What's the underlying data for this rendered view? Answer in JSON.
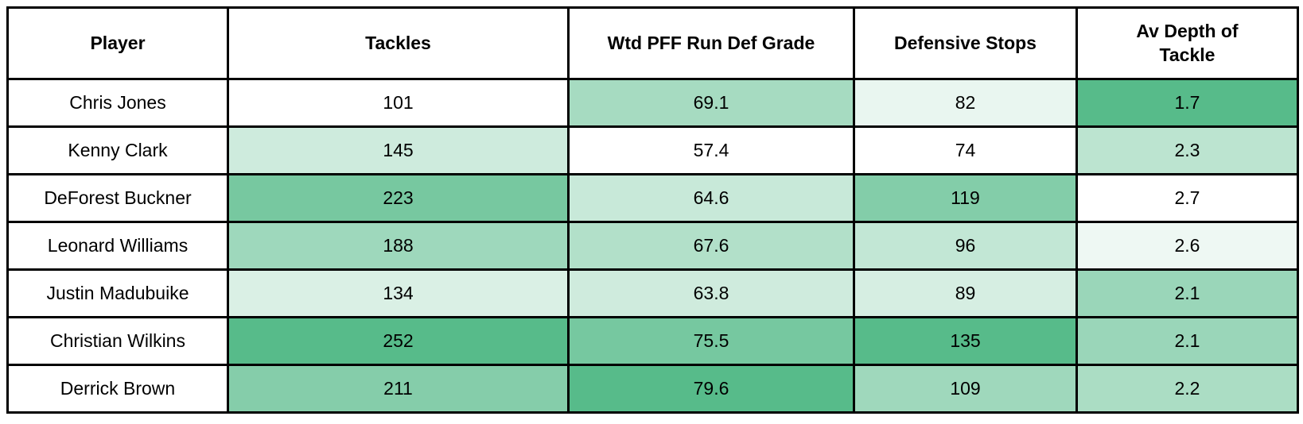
{
  "table": {
    "columns": [
      "Player",
      "Tackles",
      "Wtd PFF Run Def Grade",
      "Defensive Stops",
      "Av Depth of Tackle"
    ],
    "rows": [
      {
        "player": "Chris Jones",
        "cells": [
          {
            "value": "101",
            "bg": "#FFFFFF"
          },
          {
            "value": "69.1",
            "bg": "#A6DBC1"
          },
          {
            "value": "82",
            "bg": "#E9F6F0"
          },
          {
            "value": "1.7",
            "bg": "#57BB8A"
          }
        ]
      },
      {
        "player": "Kenny Clark",
        "cells": [
          {
            "value": "145",
            "bg": "#CEEBDD"
          },
          {
            "value": "57.4",
            "bg": "#FFFFFF"
          },
          {
            "value": "74",
            "bg": "#FFFFFF"
          },
          {
            "value": "2.3",
            "bg": "#BCE4D0"
          }
        ]
      },
      {
        "player": "DeForest Buckner",
        "cells": [
          {
            "value": "223",
            "bg": "#77C8A0"
          },
          {
            "value": "64.6",
            "bg": "#C8E9D9"
          },
          {
            "value": "119",
            "bg": "#83CDA9"
          },
          {
            "value": "2.7",
            "bg": "#FFFFFF"
          }
        ]
      },
      {
        "player": "Leonard Williams",
        "cells": [
          {
            "value": "188",
            "bg": "#9ED8BC"
          },
          {
            "value": "67.6",
            "bg": "#B2E0C9"
          },
          {
            "value": "96",
            "bg": "#C2E7D5"
          },
          {
            "value": "2.6",
            "bg": "#EEF8F3"
          }
        ]
      },
      {
        "player": "Justin Madubuike",
        "cells": [
          {
            "value": "134",
            "bg": "#DAF0E5"
          },
          {
            "value": "63.8",
            "bg": "#CFEBDD"
          },
          {
            "value": "89",
            "bg": "#D6EEE2"
          },
          {
            "value": "2.1",
            "bg": "#9AD6B9"
          }
        ]
      },
      {
        "player": "Christian Wilkins",
        "cells": [
          {
            "value": "252",
            "bg": "#57BB8A"
          },
          {
            "value": "75.5",
            "bg": "#76C8A0"
          },
          {
            "value": "135",
            "bg": "#57BB8A"
          },
          {
            "value": "2.1",
            "bg": "#9AD6B9"
          }
        ]
      },
      {
        "player": "Derrick Brown",
        "cells": [
          {
            "value": "211",
            "bg": "#85CDAA"
          },
          {
            "value": "79.6",
            "bg": "#57BB8A"
          },
          {
            "value": "109",
            "bg": "#9FD8BC"
          },
          {
            "value": "2.2",
            "bg": "#ABDDC4"
          }
        ]
      }
    ]
  },
  "chart_data": {
    "type": "table",
    "columns": [
      "Player",
      "Tackles",
      "Wtd PFF Run Def Grade",
      "Defensive Stops",
      "Av Depth of Tackle"
    ],
    "rows": [
      [
        "Chris Jones",
        101,
        69.1,
        82,
        1.7
      ],
      [
        "Kenny Clark",
        145,
        57.4,
        74,
        2.3
      ],
      [
        "DeForest Buckner",
        223,
        64.6,
        119,
        2.7
      ],
      [
        "Leonard Williams",
        188,
        67.6,
        96,
        2.6
      ],
      [
        "Justin Madubuike",
        134,
        63.8,
        89,
        2.1
      ],
      [
        "Christian Wilkins",
        252,
        75.5,
        135,
        2.1
      ],
      [
        "Derrick Brown",
        211,
        79.6,
        109,
        2.2
      ]
    ],
    "layout_hints": {
      "heatmap_low_color": "#FFFFFF",
      "heatmap_high_color": "#57BB8A",
      "heatmap_scope": "per column",
      "inverted_scale_columns": [
        "Av Depth of Tackle"
      ],
      "grid": "on",
      "border_color": "#000000"
    }
  }
}
